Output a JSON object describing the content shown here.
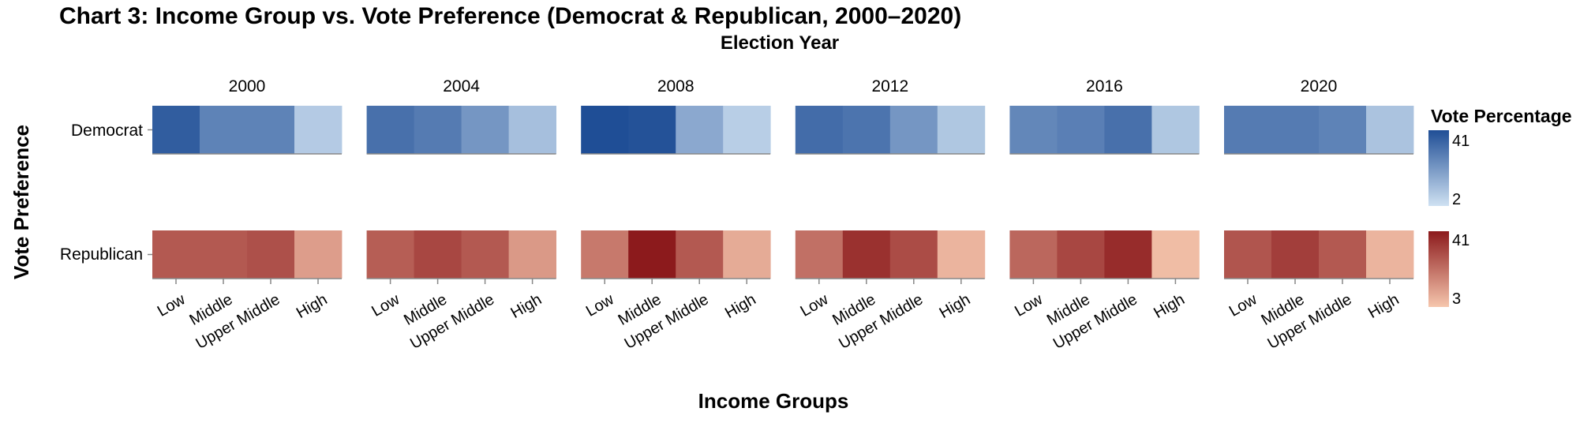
{
  "chart_data": {
    "type": "heatmap",
    "title": "Chart 3: Income Group vs. Vote Preference (Democrat & Republican, 2000–2020)",
    "column_title": "Election Year",
    "xlabel": "Income Groups",
    "ylabel": "Vote Preference",
    "years": [
      "2000",
      "2004",
      "2008",
      "2012",
      "2016",
      "2020"
    ],
    "categories": [
      "Low",
      "Middle",
      "Upper Middle",
      "High"
    ],
    "rows": [
      "Democrat",
      "Republican"
    ],
    "values": {
      "Democrat": {
        "2000": [
          37,
          27,
          27,
          8
        ],
        "2004": [
          32,
          29,
          22,
          11
        ],
        "2008": [
          41,
          40,
          17,
          7
        ],
        "2012": [
          33,
          31,
          22,
          9
        ],
        "2016": [
          26,
          28,
          32,
          9
        ],
        "2020": [
          29,
          29,
          27,
          10
        ]
      },
      "Republican": {
        "2000": [
          27,
          27,
          29,
          12
        ],
        "2004": [
          26,
          31,
          27,
          13
        ],
        "2008": [
          20,
          41,
          27,
          9
        ],
        "2012": [
          22,
          36,
          30,
          7
        ],
        "2016": [
          24,
          31,
          37,
          5
        ],
        "2020": [
          28,
          33,
          27,
          7
        ]
      }
    },
    "legend": {
      "title": "Vote Percentage",
      "Democrat": {
        "min": 2,
        "max": 41,
        "color_low": "#cfe1f2",
        "color_high": "#1f4e96"
      },
      "Republican": {
        "min": 3,
        "max": 41,
        "color_low": "#f6c6ad",
        "color_high": "#8c1a1c"
      }
    }
  }
}
